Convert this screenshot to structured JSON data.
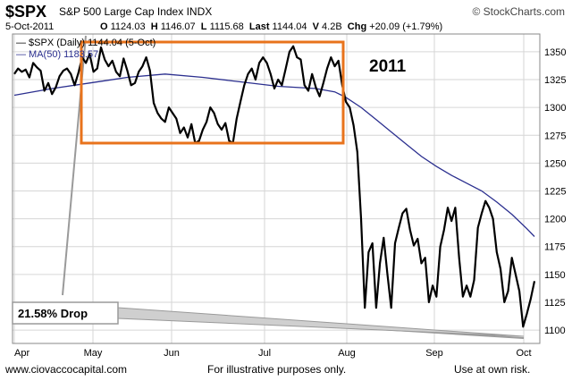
{
  "header": {
    "ticker": "$SPX",
    "index_name": "S&P 500 Large Cap Index",
    "exchange": "INDX",
    "source": "© StockCharts.com",
    "date": "5-Oct-2011",
    "open_label": "O",
    "open": "1124.03",
    "high_label": "H",
    "high": "1146.07",
    "low_label": "L",
    "low": "1115.68",
    "last_label": "Last",
    "last": "1144.04",
    "volume_label": "V",
    "volume": "4.2B",
    "chg_label": "Chg",
    "chg": "+20.09 (+1.79%)"
  },
  "footer": {
    "website": "www.ciovaccocapital.com",
    "disclaimer": "For illustrative purposes only.",
    "risk": "Use at own risk."
  },
  "colors": {
    "price_line": "#000000",
    "ma_line": "#2b2f8f",
    "highlight_box": "#e8731c",
    "grid": "#d6d6d6"
  },
  "chart_data": {
    "type": "line",
    "legend": [
      {
        "label": "$SPX (Daily) 1144.04 (5-Oct)",
        "marker": "—"
      },
      {
        "label": "MA(50) 1183.57",
        "marker": "—"
      }
    ],
    "annotations": {
      "year": "2011",
      "drop": "21.58% Drop"
    },
    "y_ticks": [
      1100,
      1125,
      1150,
      1175,
      1200,
      1225,
      1250,
      1275,
      1300,
      1325,
      1350
    ],
    "ylim": [
      1088,
      1366
    ],
    "x_ticks": [
      "Apr",
      "May",
      "Jun",
      "Jul",
      "Aug",
      "Sep",
      "Oct"
    ],
    "series": [
      {
        "name": "$SPX",
        "x": [
          0,
          1,
          2,
          3,
          4,
          5,
          6,
          7,
          8,
          9,
          10,
          11,
          12,
          13,
          14,
          15,
          16,
          17,
          18,
          19,
          20,
          21,
          22,
          23,
          24,
          25,
          26,
          27,
          28,
          29,
          30,
          31,
          32,
          33,
          34,
          35,
          36,
          37,
          38,
          39,
          40,
          41,
          42,
          43,
          44,
          45,
          46,
          47,
          48,
          49,
          50,
          51,
          52,
          53,
          54,
          55,
          56,
          57,
          58,
          59,
          60,
          61,
          62,
          63,
          64,
          65,
          66,
          67,
          68,
          69,
          70,
          71,
          72,
          73,
          74,
          75,
          76,
          77,
          78,
          79,
          80,
          81,
          82,
          83,
          84,
          85,
          86,
          87,
          88,
          89,
          90,
          91,
          92,
          93,
          94,
          95,
          96,
          97,
          98,
          99,
          100,
          101,
          102,
          103,
          104,
          105,
          106,
          107,
          108,
          109,
          110,
          111,
          112,
          113,
          114,
          115,
          116,
          117,
          118,
          119,
          120,
          121,
          122,
          123,
          124,
          125,
          126,
          127,
          128,
          129,
          130,
          131,
          132,
          133,
          134,
          135,
          136,
          137,
          138
        ],
        "values": [
          1330,
          1335,
          1332,
          1334,
          1327,
          1340,
          1336,
          1333,
          1315,
          1322,
          1312,
          1318,
          1328,
          1333,
          1335,
          1330,
          1320,
          1331,
          1345,
          1340,
          1348,
          1332,
          1335,
          1354,
          1343,
          1337,
          1342,
          1332,
          1328,
          1344,
          1333,
          1320,
          1322,
          1332,
          1337,
          1345,
          1333,
          1304,
          1295,
          1290,
          1287,
          1300,
          1295,
          1290,
          1277,
          1282,
          1273,
          1285,
          1268,
          1270,
          1280,
          1287,
          1300,
          1295,
          1285,
          1280,
          1286,
          1270,
          1268,
          1290,
          1305,
          1320,
          1330,
          1335,
          1325,
          1340,
          1345,
          1340,
          1330,
          1317,
          1325,
          1320,
          1335,
          1350,
          1355,
          1345,
          1343,
          1320,
          1315,
          1330,
          1318,
          1310,
          1322,
          1335,
          1345,
          1337,
          1342,
          1320,
          1305,
          1300,
          1284,
          1260,
          1200,
          1120,
          1170,
          1178,
          1120,
          1160,
          1183,
          1150,
          1120,
          1178,
          1192,
          1205,
          1209,
          1190,
          1176,
          1182,
          1160,
          1165,
          1125,
          1140,
          1130,
          1175,
          1190,
          1210,
          1198,
          1210,
          1165,
          1130,
          1140,
          1130,
          1145,
          1192,
          1205,
          1216,
          1210,
          1200,
          1170,
          1155,
          1125,
          1135,
          1165,
          1150,
          1135,
          1103,
          1115,
          1128,
          1144
        ]
      },
      {
        "name": "MA(50)",
        "x": [
          0,
          10,
          20,
          30,
          40,
          50,
          60,
          70,
          80,
          85,
          88,
          92,
          96,
          100,
          104,
          108,
          112,
          116,
          120,
          124,
          128,
          132,
          136,
          138
        ],
        "values": [
          1311,
          1317,
          1322,
          1327,
          1330,
          1327,
          1323,
          1319,
          1317,
          1314,
          1309,
          1300,
          1289,
          1278,
          1267,
          1256,
          1247,
          1239,
          1232,
          1225,
          1215,
          1204,
          1191,
          1184
        ]
      }
    ]
  }
}
